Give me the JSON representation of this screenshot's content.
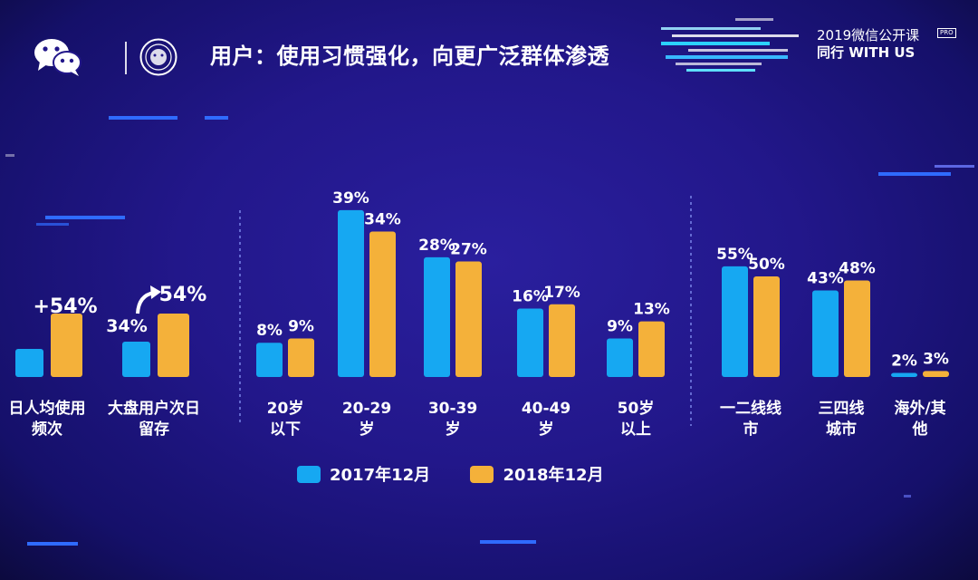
{
  "header": {
    "title": "用户：使用习惯强化，向更广泛群体渗透",
    "brand_line1": "2019微信公开课",
    "brand_tag": "PRO",
    "brand_line2": "同行  WITH US"
  },
  "colors": {
    "series_2017": "#16a8f2",
    "series_2018": "#f4b13a",
    "background": "#22178a",
    "accent_line": "#2f6bff"
  },
  "icons": {
    "left": "wechat-logo-icon",
    "middle": "seal-icon",
    "arrow": "curved-arrow-icon"
  },
  "chart_data": [
    {
      "type": "bar",
      "categories": [
        "日人均使用频次",
        "大盘用户次日留存"
      ],
      "category_lines": [
        [
          "日人均使用",
          "频次"
        ],
        [
          "大盘用户次日",
          "留存"
        ]
      ],
      "series": [
        {
          "name": "2017年12月",
          "values": [
            null,
            null
          ]
        },
        {
          "name": "2018年12月",
          "values": [
            null,
            null
          ]
        }
      ],
      "annotations": [
        "+54%",
        "54%"
      ],
      "legend": "bottom"
    },
    {
      "type": "bar",
      "categories": [
        "20岁以下",
        "20-29岁",
        "30-39岁",
        "40-49岁",
        "50岁以上"
      ],
      "category_lines": [
        [
          "20岁",
          "以下"
        ],
        [
          "20-29",
          "岁"
        ],
        [
          "30-39",
          "岁"
        ],
        [
          "40-49",
          "岁"
        ],
        [
          "50岁",
          "以上"
        ]
      ],
      "series": [
        {
          "name": "2017年12月",
          "values": [
            8,
            39,
            28,
            16,
            9
          ],
          "labels": [
            "8%",
            "39%",
            "28%",
            "16%",
            "9%"
          ]
        },
        {
          "name": "2018年12月",
          "values": [
            9,
            34,
            27,
            17,
            13
          ],
          "labels": [
            "9%",
            "34%",
            "27%",
            "17%",
            "13%"
          ]
        }
      ],
      "unit": "%",
      "legend": "bottom"
    },
    {
      "type": "bar",
      "categories": [
        "一二线线市",
        "三四线城市",
        "海外/其他"
      ],
      "category_lines": [
        [
          "一二线线",
          "市"
        ],
        [
          "三四线",
          "城市"
        ],
        [
          "海外/其",
          "他"
        ]
      ],
      "series": [
        {
          "name": "2017年12月",
          "values": [
            55,
            43,
            2
          ],
          "labels": [
            "55%",
            "43%",
            "2%"
          ]
        },
        {
          "name": "2018年12月",
          "values": [
            50,
            48,
            3
          ],
          "labels": [
            "50%",
            "48%",
            "3%"
          ]
        }
      ],
      "unit": "%",
      "legend": "bottom"
    }
  ],
  "legend": {
    "items": [
      {
        "label": "2017年12月"
      },
      {
        "label": "2018年12月"
      }
    ]
  }
}
